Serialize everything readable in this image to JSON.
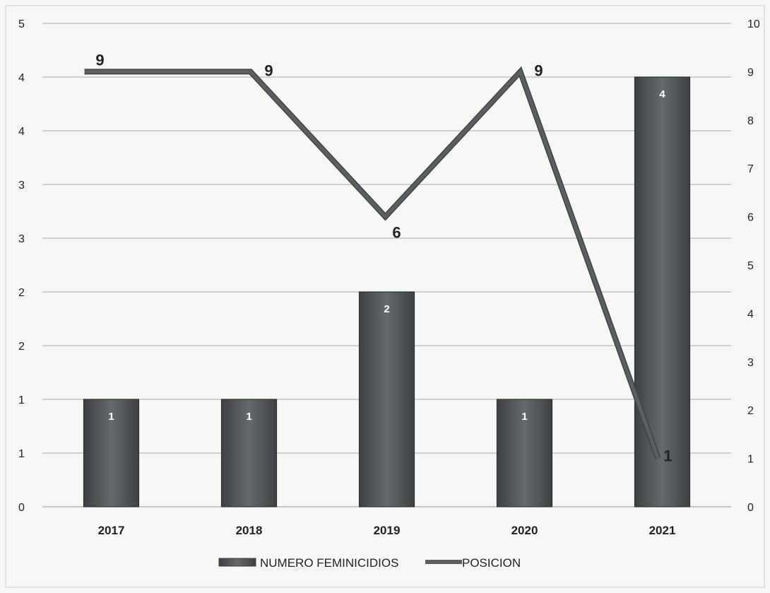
{
  "chart_data": {
    "type": "bar",
    "categories": [
      "2017",
      "2018",
      "2019",
      "2020",
      "2021"
    ],
    "series": [
      {
        "name": "NUMERO FEMINICIDIOS",
        "type": "bar",
        "axis": "left",
        "values": [
          1,
          1,
          2,
          1,
          4
        ],
        "color": "#555a5c"
      },
      {
        "name": "POSICION",
        "type": "line",
        "axis": "right",
        "values": [
          9,
          9,
          6,
          9,
          1
        ],
        "color": "#5a5f62"
      }
    ],
    "y_left": {
      "ylim": [
        0,
        4.5
      ],
      "ticks": [
        0,
        0.5,
        1,
        1.5,
        2,
        2.5,
        3,
        3.5,
        4,
        4.5
      ],
      "tick_labels": [
        "0",
        "1",
        "1",
        "2",
        "2",
        "3",
        "3",
        "4",
        "4",
        "5"
      ]
    },
    "y_right": {
      "ylim": [
        0,
        10
      ],
      "ticks": [
        0,
        1,
        2,
        3,
        4,
        5,
        6,
        7,
        8,
        9,
        10
      ],
      "tick_labels": [
        "0",
        "1",
        "2",
        "3",
        "4",
        "5",
        "6",
        "7",
        "8",
        "9",
        "10"
      ]
    },
    "title": "",
    "xlabel": "",
    "ylabel": "",
    "grid": true,
    "legend": "bottom"
  }
}
